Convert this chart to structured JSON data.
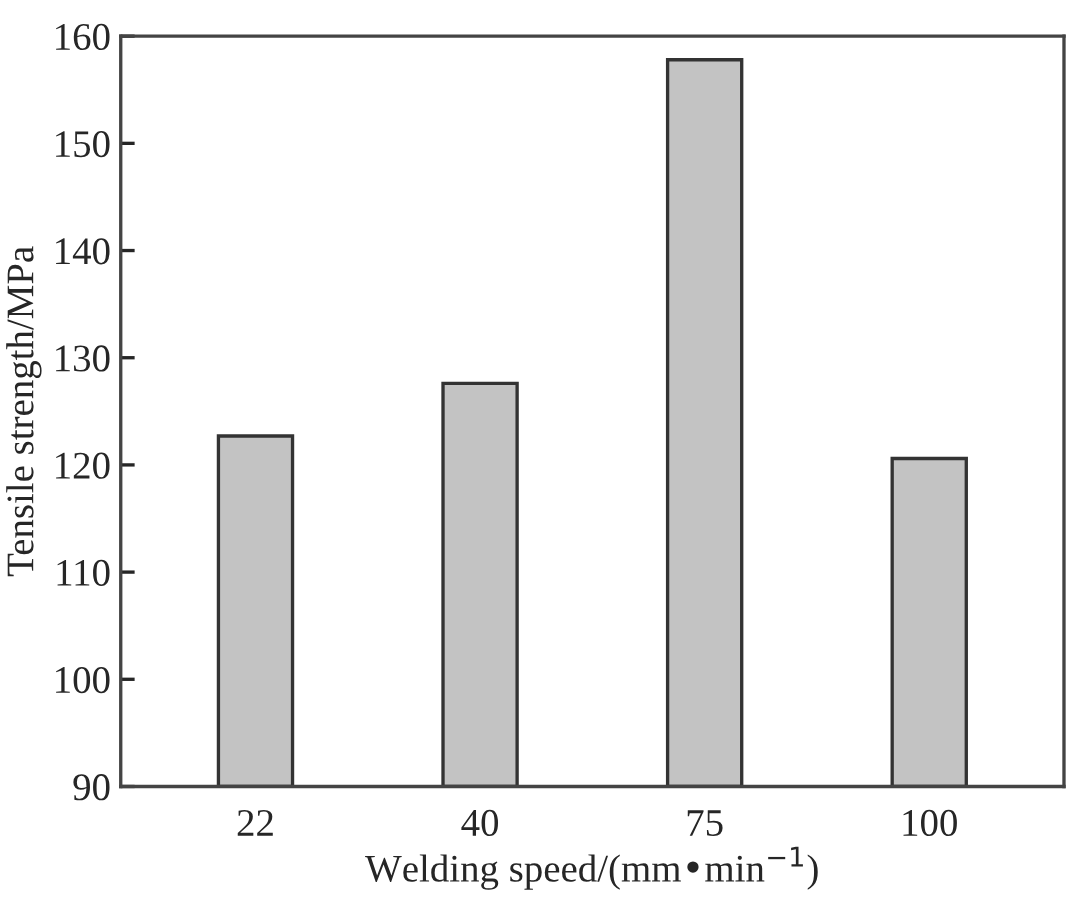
{
  "chart_data": {
    "type": "bar",
    "xlabel": "Welding speed/(mm•min$^{−1}$)",
    "ylabel": "Tensile strength/MPa",
    "categories": [
      "22",
      "40",
      "75",
      "100"
    ],
    "values": [
      122.7,
      127.6,
      157.8,
      120.6
    ],
    "color": "#c3c3c3",
    "ylim": [
      90,
      160
    ],
    "yticks": [
      90,
      100,
      110,
      120,
      130,
      140,
      150,
      160
    ],
    "grid": false
  }
}
